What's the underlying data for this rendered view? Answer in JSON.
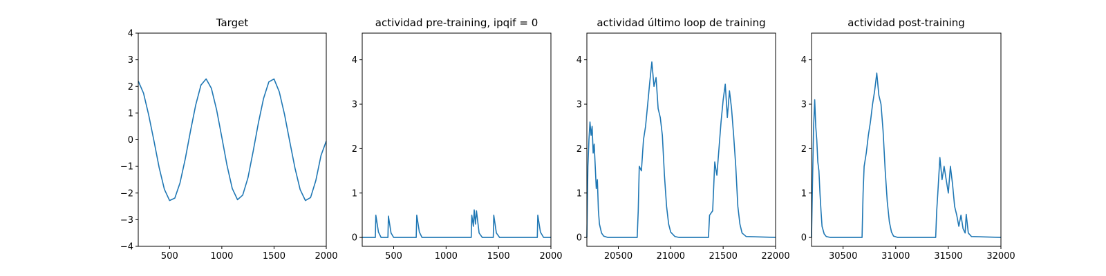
{
  "figure": {
    "background": "#ffffff"
  },
  "chart_data": [
    {
      "type": "line",
      "title": "Target",
      "color": "#1f77b4",
      "xlim": [
        200,
        2000
      ],
      "ylim": [
        -4,
        4
      ],
      "xticks": [
        500,
        1000,
        1500,
        2000
      ],
      "yticks": [
        -4,
        -3,
        -2,
        -1,
        0,
        1,
        2,
        3,
        4
      ],
      "tick_labels_x": [
        "500",
        "1000",
        "1500",
        "2000"
      ],
      "tick_labels_y": [
        "−4",
        "−3",
        "−2",
        "−1",
        "0",
        "1",
        "2",
        "3",
        "4"
      ],
      "series": [
        {
          "x": [
            200,
            250,
            300,
            350,
            400,
            450,
            500,
            550,
            600,
            650,
            700,
            750,
            800,
            850,
            900,
            950,
            1000,
            1050,
            1100,
            1150,
            1200,
            1250,
            1300,
            1350,
            1400,
            1450,
            1500,
            1550,
            1600,
            1650,
            1700,
            1750,
            1800,
            1850,
            1900,
            1950,
            2000
          ],
          "values": [
            2.2,
            1.75,
            0.93,
            -0.04,
            -1.04,
            -1.86,
            -2.28,
            -2.19,
            -1.62,
            -0.72,
            0.33,
            1.3,
            2.05,
            2.28,
            1.93,
            1.13,
            0.09,
            -0.96,
            -1.83,
            -2.25,
            -2.08,
            -1.43,
            -0.44,
            0.63,
            1.55,
            2.17,
            2.28,
            1.8,
            0.95,
            -0.06,
            -1.06,
            -1.87,
            -2.28,
            -2.17,
            -1.53,
            -0.59,
            -0.05
          ]
        }
      ]
    },
    {
      "type": "line",
      "title": "actividad pre-training, ipqif = 0",
      "color": "#1f77b4",
      "xlim": [
        200,
        2000
      ],
      "ylim": [
        -0.2,
        4.6
      ],
      "xticks": [
        500,
        1000,
        1500,
        2000
      ],
      "yticks": [
        0,
        1,
        2,
        3,
        4
      ],
      "tick_labels_x": [
        "500",
        "1000",
        "1500",
        "2000"
      ],
      "tick_labels_y": [
        "0",
        "1",
        "2",
        "3",
        "4"
      ],
      "series": [
        {
          "x": [
            200,
            325,
            330,
            355,
            380,
            445,
            450,
            475,
            500,
            715,
            720,
            745,
            770,
            1240,
            1245,
            1260,
            1268,
            1280,
            1290,
            1315,
            1345,
            1450,
            1455,
            1480,
            1510,
            1870,
            1875,
            1900,
            1930,
            2000
          ],
          "values": [
            0,
            0,
            0.5,
            0.12,
            0,
            0,
            0.48,
            0.1,
            0,
            0,
            0.5,
            0.12,
            0,
            0,
            0.5,
            0.25,
            0.62,
            0.3,
            0.6,
            0.1,
            0,
            0,
            0.5,
            0.1,
            0,
            0,
            0.5,
            0.12,
            0,
            0
          ]
        }
      ]
    },
    {
      "type": "line",
      "title": "actividad último loop de training",
      "color": "#1f77b4",
      "xlim": [
        20200,
        22000
      ],
      "ylim": [
        -0.2,
        4.6
      ],
      "xticks": [
        20500,
        21000,
        21500,
        22000
      ],
      "yticks": [
        0,
        1,
        2,
        3,
        4
      ],
      "tick_labels_x": [
        "20500",
        "21000",
        "21500",
        "22000"
      ],
      "tick_labels_y": [
        "0",
        "1",
        "2",
        "3",
        "4"
      ],
      "series": [
        {
          "x": [
            20200,
            20210,
            20220,
            20230,
            20240,
            20250,
            20260,
            20270,
            20280,
            20290,
            20300,
            20310,
            20320,
            20340,
            20360,
            20400,
            20680,
            20690,
            20700,
            20720,
            20740,
            20760,
            20780,
            20800,
            20820,
            20840,
            20860,
            20880,
            20900,
            20920,
            20940,
            20960,
            20980,
            21000,
            21040,
            21080,
            21360,
            21370,
            21400,
            21420,
            21440,
            21460,
            21480,
            21500,
            21520,
            21540,
            21560,
            21580,
            21600,
            21620,
            21640,
            21660,
            21680,
            21720,
            22000
          ],
          "values": [
            0,
            1.6,
            2.2,
            2.6,
            2.3,
            2.5,
            1.9,
            2.1,
            1.6,
            1.1,
            1.3,
            0.6,
            0.3,
            0.1,
            0.03,
            0,
            0,
            0.6,
            1.6,
            1.5,
            2.2,
            2.5,
            3.0,
            3.5,
            3.95,
            3.4,
            3.6,
            2.9,
            2.7,
            2.3,
            1.4,
            0.7,
            0.3,
            0.12,
            0.02,
            0,
            0,
            0.5,
            0.6,
            1.7,
            1.4,
            2.0,
            2.6,
            3.1,
            3.45,
            2.7,
            3.3,
            2.9,
            2.3,
            1.6,
            0.7,
            0.3,
            0.1,
            0.02,
            0
          ]
        }
      ]
    },
    {
      "type": "line",
      "title": "actividad post-training",
      "color": "#1f77b4",
      "xlim": [
        30200,
        32000
      ],
      "ylim": [
        -0.2,
        4.6
      ],
      "xticks": [
        30500,
        31000,
        31500,
        32000
      ],
      "yticks": [
        0,
        1,
        2,
        3,
        4
      ],
      "tick_labels_x": [
        "30500",
        "31000",
        "31500",
        "32000"
      ],
      "tick_labels_y": [
        "0",
        "1",
        "2",
        "3",
        "4"
      ],
      "series": [
        {
          "x": [
            30200,
            30210,
            30220,
            30230,
            30240,
            30250,
            30260,
            30270,
            30280,
            30290,
            30300,
            30320,
            30340,
            30380,
            30680,
            30690,
            30700,
            30720,
            30740,
            30760,
            30780,
            30800,
            30820,
            30840,
            30860,
            30880,
            30900,
            30920,
            30940,
            30960,
            30980,
            31020,
            31380,
            31390,
            31400,
            31420,
            31440,
            31460,
            31480,
            31500,
            31520,
            31540,
            31560,
            31580,
            31600,
            31620,
            31640,
            31660,
            31670,
            31690,
            31720,
            32000
          ],
          "values": [
            0,
            1.3,
            2.5,
            3.1,
            2.5,
            2.2,
            1.7,
            1.5,
            1.0,
            0.6,
            0.25,
            0.08,
            0.02,
            0,
            0,
            1.0,
            1.6,
            1.9,
            2.3,
            2.6,
            3.0,
            3.3,
            3.7,
            3.2,
            3.0,
            2.4,
            1.5,
            0.8,
            0.35,
            0.12,
            0.03,
            0,
            0,
            0.6,
            1.0,
            1.8,
            1.3,
            1.6,
            1.3,
            1.0,
            1.6,
            1.2,
            0.7,
            0.5,
            0.25,
            0.5,
            0.2,
            0.1,
            0.52,
            0.1,
            0.02,
            0
          ]
        }
      ]
    }
  ]
}
